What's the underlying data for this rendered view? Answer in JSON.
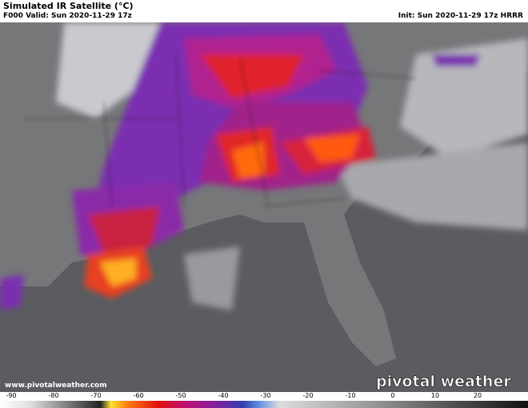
{
  "header": {
    "title": "Simulated IR Satellite (°C)",
    "valid": "F000 Valid: Sun 2020-11-29 17z",
    "init": "Init: Sun 2020-11-29 17z HRRR"
  },
  "watermark": {
    "url": "www.pivotalweather.com",
    "logo": "pivotal weather"
  },
  "colorbar": {
    "ticks": [
      -90,
      -80,
      -70,
      -60,
      -50,
      -40,
      -30,
      -20,
      -10,
      0,
      10,
      20
    ]
  }
}
